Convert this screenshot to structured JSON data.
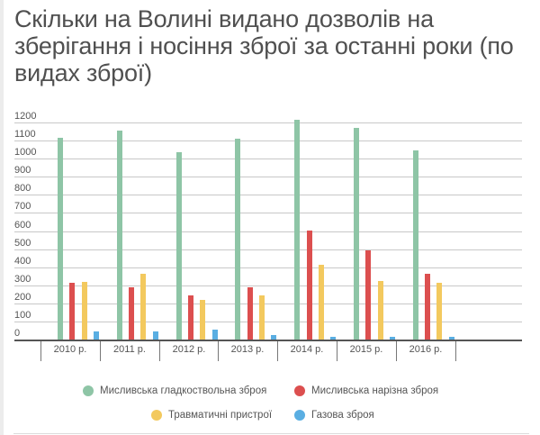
{
  "title": "Скільки на Волині видано дозволів на зберігання і носіння зброї за останні роки (по видах зброї)",
  "chart_data": {
    "type": "bar",
    "title": "Скільки на Волині видано дозволів на зберігання і носіння зброї за останні роки (по видах зброї)",
    "xlabel": "",
    "ylabel": "",
    "ylim": [
      0,
      1200
    ],
    "yticks": [
      0,
      100,
      200,
      300,
      400,
      500,
      600,
      700,
      800,
      900,
      1000,
      1100,
      1200
    ],
    "grid": true,
    "legend_position": "bottom",
    "categories": [
      "2010 р.",
      "2011 р.",
      "2012 р.",
      "2013 р.",
      "2014 р.",
      "2015 р.",
      "2016 р."
    ],
    "series": [
      {
        "name": "Мисливська гладкоствольна зброя",
        "color": "#8ec5a6",
        "values": [
          1112,
          1153,
          1033,
          1110,
          1216,
          1168,
          1047
        ]
      },
      {
        "name": "Мисливська нарізна зброя",
        "color": "#dc4f4f",
        "values": [
          315,
          290,
          244,
          290,
          605,
          492,
          364
        ]
      },
      {
        "name": "Травматичні пристрої",
        "color": "#f3c95e",
        "values": [
          318,
          363,
          219,
          244,
          416,
          326,
          316
        ]
      },
      {
        "name": "Газова зброя",
        "color": "#5aaee2",
        "values": [
          45,
          48,
          56,
          25,
          16,
          16,
          15
        ]
      }
    ]
  }
}
